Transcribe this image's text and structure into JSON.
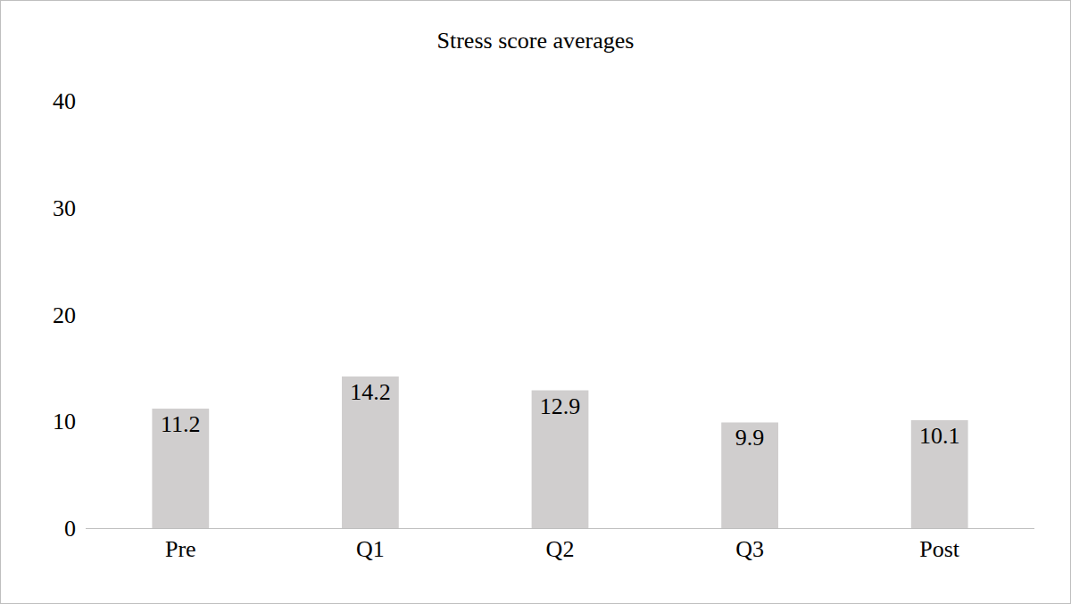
{
  "chart_data": {
    "type": "bar",
    "title": "Stress score averages",
    "categories": [
      "Pre",
      "Q1",
      "Q2",
      "Q3",
      "Post"
    ],
    "values": [
      11.2,
      14.2,
      12.9,
      9.9,
      10.1
    ],
    "color": "#d0cece",
    "ylim": [
      0,
      40
    ],
    "yticks": [
      0,
      10,
      20,
      30,
      40
    ],
    "grid": false,
    "data_labels": true
  }
}
